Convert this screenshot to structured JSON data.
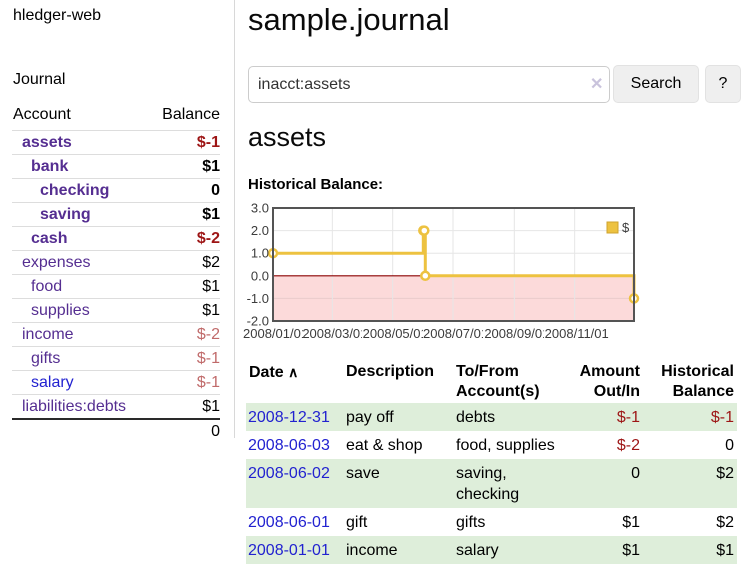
{
  "colors": {
    "purple": "#552e91",
    "blue": "#2222d0",
    "pos": "#000000",
    "neg": "#9d1515",
    "neg_dim": "#c06a6a",
    "stripe_green": "#deeeda",
    "accent_series": "#EDC240"
  },
  "icons": {
    "clear": "✕",
    "sort_asc": "∧"
  },
  "sidebar": {
    "brand": "hledger-web",
    "nav_journal": "Journal",
    "accounts_table": {
      "headers": {
        "account": "Account",
        "balance": "Balance"
      },
      "rows": [
        {
          "name": "assets",
          "indent": 0,
          "bold": true,
          "link_color": "purple",
          "balance": "$-1",
          "balance_color": "neg"
        },
        {
          "name": "bank",
          "indent": 1,
          "bold": true,
          "link_color": "purple",
          "balance": "$1",
          "balance_color": "pos"
        },
        {
          "name": "checking",
          "indent": 2,
          "bold": true,
          "link_color": "purple",
          "balance": "0",
          "balance_color": "pos"
        },
        {
          "name": "saving",
          "indent": 2,
          "bold": true,
          "link_color": "purple",
          "balance": "$1",
          "balance_color": "pos"
        },
        {
          "name": "cash",
          "indent": 1,
          "bold": true,
          "link_color": "purple",
          "balance": "$-2",
          "balance_color": "neg"
        },
        {
          "name": "expenses",
          "indent": 0,
          "bold": false,
          "link_color": "purple",
          "balance": "$2",
          "balance_color": "pos"
        },
        {
          "name": "food",
          "indent": 1,
          "bold": false,
          "link_color": "purple",
          "balance": "$1",
          "balance_color": "pos"
        },
        {
          "name": "supplies",
          "indent": 1,
          "bold": false,
          "link_color": "purple",
          "balance": "$1",
          "balance_color": "pos"
        },
        {
          "name": "income",
          "indent": 0,
          "bold": false,
          "link_color": "purple",
          "balance": "$-2",
          "balance_color": "neg_dim"
        },
        {
          "name": "gifts",
          "indent": 1,
          "bold": false,
          "link_color": "purple",
          "balance": "$-1",
          "balance_color": "neg_dim"
        },
        {
          "name": "salary",
          "indent": 1,
          "bold": false,
          "link_color": "blue",
          "balance": "$-1",
          "balance_color": "neg_dim"
        },
        {
          "name": "liabilities:debts",
          "indent": 0,
          "bold": false,
          "link_color": "purple",
          "balance": "$1",
          "balance_color": "pos"
        }
      ],
      "total": "0"
    }
  },
  "main": {
    "title": "sample.journal",
    "search": {
      "value": "inacct:assets"
    },
    "search_button": "Search",
    "help_button": "?",
    "account_heading": "assets",
    "chart_label": "Historical Balance:"
  },
  "chart_data": {
    "type": "line",
    "steps": true,
    "title": "Historical Balance:",
    "xlabel": "",
    "ylabel": "",
    "ylim": [
      -2,
      3
    ],
    "yticks": [
      3,
      2,
      1,
      0,
      -1,
      -2
    ],
    "ytick_labels": [
      "3.0",
      "2.0",
      "1.0",
      "0.0",
      "-1.0",
      "-2.0"
    ],
    "x_range": [
      "2008-01-01",
      "2008-12-31"
    ],
    "xticks": [
      {
        "pos": "2008-01-01",
        "label": "2008/01/01"
      },
      {
        "pos": "2008-03-01",
        "label": "2008/03/01"
      },
      {
        "pos": "2008-05-01",
        "label": "2008/05/01"
      },
      {
        "pos": "2008-07-01",
        "label": "2008/07/01"
      },
      {
        "pos": "2008-09-01",
        "label": "2008/09/01"
      },
      {
        "pos": "2008-11-01",
        "label": "2008/11/01"
      }
    ],
    "series": [
      {
        "name": "$",
        "color": "#EDC240",
        "points": [
          {
            "x": "2008-01-01",
            "y": 1
          },
          {
            "x": "2008-06-01",
            "y": 2
          },
          {
            "x": "2008-06-02",
            "y": 2
          },
          {
            "x": "2008-06-03",
            "y": 0
          },
          {
            "x": "2008-12-31",
            "y": -1
          }
        ]
      }
    ],
    "legend_position": "top-right",
    "grid_on": true,
    "grid_color": "#e6e6e6",
    "border_color": "#545454",
    "negative_region_color": "#fcdada",
    "zero_line_color": "#8b0000",
    "tick_text_color": "#3c3c3c"
  },
  "transactions": {
    "headers": [
      "Date",
      "Description",
      "To/From Account(s)",
      "Amount Out/In",
      "Historical Balance"
    ],
    "rows": [
      {
        "date": "2008-12-31",
        "description": "pay off",
        "accounts": "debts",
        "amount": "$-1",
        "amount_color": "neg",
        "balance": "$-1",
        "balance_color": "neg"
      },
      {
        "date": "2008-06-03",
        "description": "eat & shop",
        "accounts": "food, supplies",
        "amount": "$-2",
        "amount_color": "neg",
        "balance": "0",
        "balance_color": "pos"
      },
      {
        "date": "2008-06-02",
        "description": "save",
        "accounts": "saving, checking",
        "amount": "0",
        "amount_color": "pos",
        "balance": "$2",
        "balance_color": "pos"
      },
      {
        "date": "2008-06-01",
        "description": "gift",
        "accounts": "gifts",
        "amount": "$1",
        "amount_color": "pos",
        "balance": "$2",
        "balance_color": "pos"
      },
      {
        "date": "2008-01-01",
        "description": "income",
        "accounts": "salary",
        "amount": "$1",
        "amount_color": "pos",
        "balance": "$1",
        "balance_color": "pos"
      }
    ]
  }
}
